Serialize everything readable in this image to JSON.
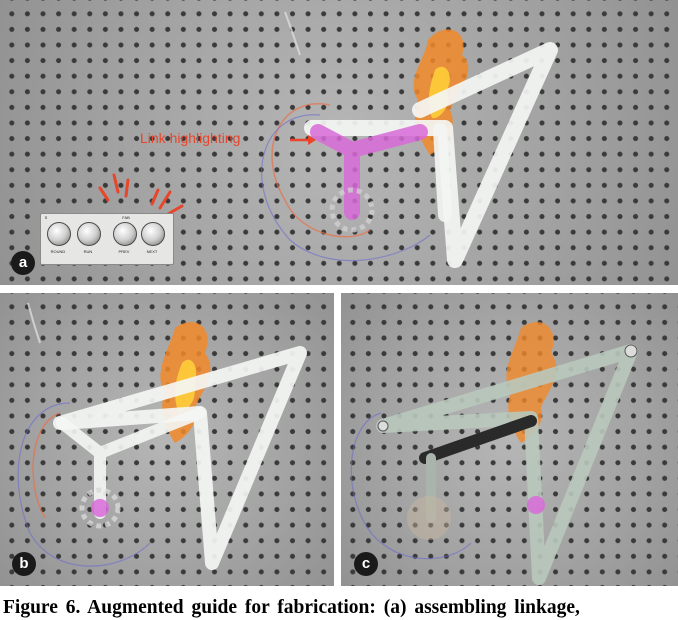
{
  "panels": [
    {
      "id": "a",
      "badge": "a",
      "callout": "Link highlighting",
      "control_box": {
        "buttons": [
          "ROUND",
          "RUN",
          "PREV",
          "NEXT"
        ],
        "header": "FAB",
        "corner": "S"
      }
    },
    {
      "id": "b",
      "badge": "b"
    },
    {
      "id": "c",
      "badge": "c"
    }
  ],
  "caption": "Figure 6. Augmented guide for fabrication: (a) assembling linkage,",
  "colors": {
    "callout": "#e8452a",
    "highlight": "#d86ad8",
    "link": "#f4f6f4",
    "accent_flame": "#f28a2a"
  }
}
